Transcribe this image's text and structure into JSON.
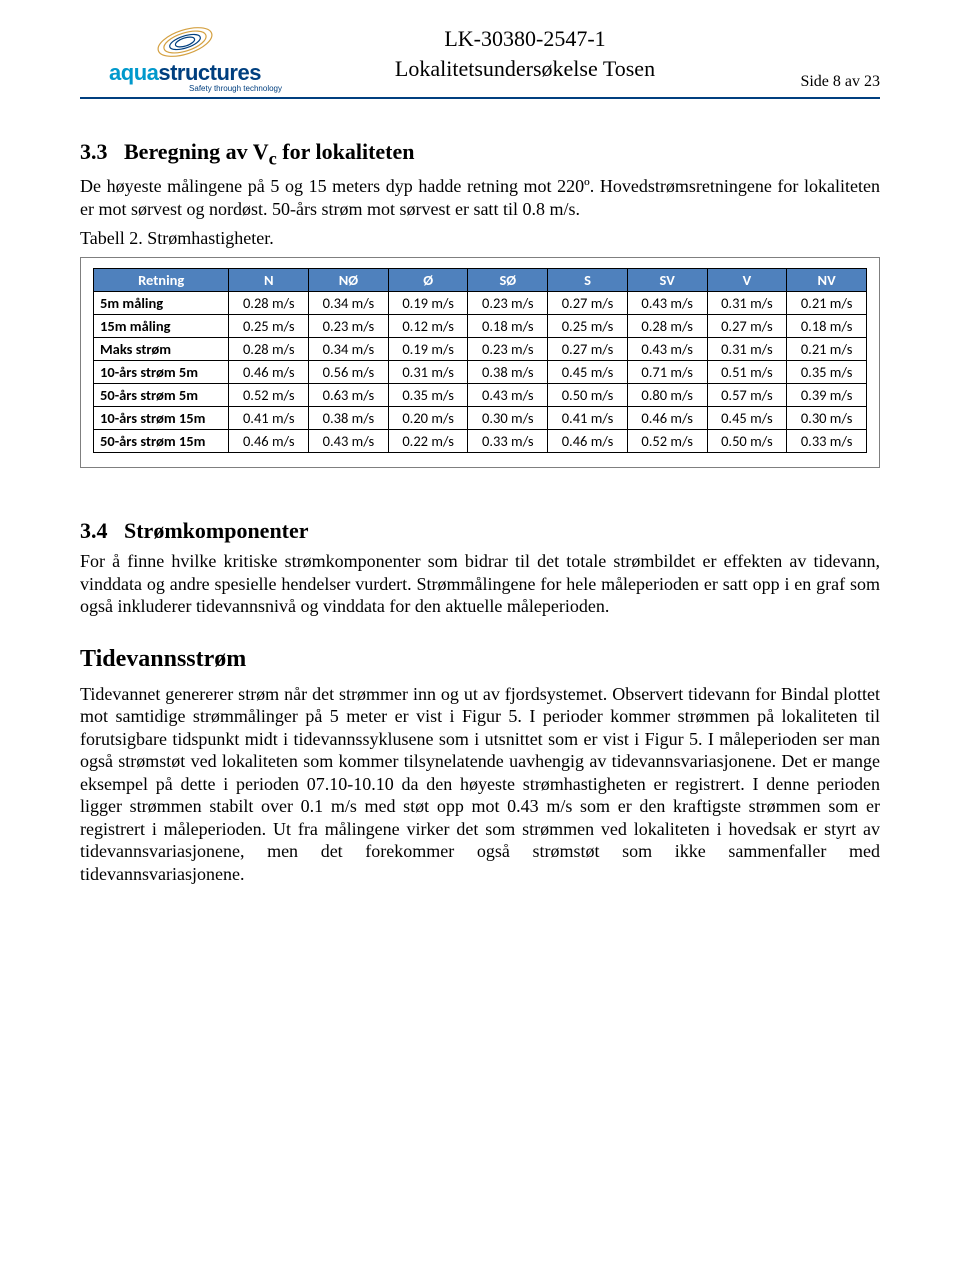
{
  "header": {
    "doc_id": "LK-30380-2547-1",
    "doc_title": "Lokalitetsundersøkelse Tosen",
    "page_info": "Side 8 av 23",
    "logo_word1": "aqua",
    "logo_word2": "structures",
    "logo_tagline": "Safety through technology",
    "logo_colors": {
      "aqua": "#0099cc",
      "structures": "#003f7f",
      "rule": "#003f7f"
    }
  },
  "section33": {
    "num": "3.3",
    "title_prefix": "Beregning av V",
    "title_sub": "c",
    "title_suffix": " for lokaliteten",
    "para": "De høyeste målingene på 5 og 15 meters dyp hadde retning mot 220º. Hovedstrømsretningene for lokaliteten er mot sørvest og nordøst. 50-års strøm mot sørvest er satt til 0.8 m/s.",
    "caption": "Tabell 2. Strømhastigheter."
  },
  "table": {
    "header_bg": "#4f81bd",
    "header_fg": "#ffffff",
    "border": "#000000",
    "font": "Calibri",
    "fontsize_pt": 11,
    "columns": [
      "Retning",
      "N",
      "NØ",
      "Ø",
      "SØ",
      "S",
      "SV",
      "V",
      "NV"
    ],
    "col_widths_pct": [
      17.5,
      10.3,
      10.3,
      10.3,
      10.3,
      10.3,
      10.3,
      10.3,
      10.3
    ],
    "rows": [
      {
        "label": "5m måling",
        "cells": [
          "0.28 m/s",
          "0.34 m/s",
          "0.19 m/s",
          "0.23 m/s",
          "0.27 m/s",
          "0.43 m/s",
          "0.31 m/s",
          "0.21 m/s"
        ]
      },
      {
        "label": "15m måling",
        "cells": [
          "0.25 m/s",
          "0.23 m/s",
          "0.12 m/s",
          "0.18 m/s",
          "0.25 m/s",
          "0.28 m/s",
          "0.27 m/s",
          "0.18 m/s"
        ]
      },
      {
        "label": "Maks strøm",
        "cells": [
          "0.28 m/s",
          "0.34 m/s",
          "0.19 m/s",
          "0.23 m/s",
          "0.27 m/s",
          "0.43 m/s",
          "0.31 m/s",
          "0.21 m/s"
        ]
      },
      {
        "label": "10-års strøm 5m",
        "cells": [
          "0.46 m/s",
          "0.56 m/s",
          "0.31 m/s",
          "0.38 m/s",
          "0.45 m/s",
          "0.71 m/s",
          "0.51 m/s",
          "0.35 m/s"
        ]
      },
      {
        "label": "50-års strøm 5m",
        "cells": [
          "0.52 m/s",
          "0.63 m/s",
          "0.35 m/s",
          "0.43 m/s",
          "0.50 m/s",
          "0.80 m/s",
          "0.57 m/s",
          "0.39 m/s"
        ]
      },
      {
        "label": "10-års strøm 15m",
        "cells": [
          "0.41 m/s",
          "0.38 m/s",
          "0.20 m/s",
          "0.30 m/s",
          "0.41 m/s",
          "0.46 m/s",
          "0.45 m/s",
          "0.30 m/s"
        ]
      },
      {
        "label": "50-års strøm 15m",
        "cells": [
          "0.46 m/s",
          "0.43 m/s",
          "0.22 m/s",
          "0.33 m/s",
          "0.46 m/s",
          "0.52 m/s",
          "0.50 m/s",
          "0.33 m/s"
        ]
      }
    ]
  },
  "section34": {
    "num": "3.4",
    "title": "Strømkomponenter",
    "para": "For å finne hvilke kritiske strømkomponenter som bidrar til det totale strømbildet er effekten av tidevann, vinddata og andre spesielle hendelser vurdert. Strømmålingene for hele måleperioden er satt opp i en graf som også inkluderer tidevannsnivå og vinddata for den aktuelle måleperioden."
  },
  "tide": {
    "heading": "Tidevannsstrøm",
    "para": "Tidevannet genererer strøm når det strømmer inn og ut av fjordsystemet. Observert tidevann for Bindal plottet mot samtidige strømmålinger på 5 meter er vist i Figur 5. I perioder kommer strømmen på lokaliteten til forutsigbare tidspunkt midt i tidevannssyklusene som i utsnittet som er vist i Figur 5. I måleperioden ser man også strømstøt ved lokaliteten som kommer tilsynelatende uavhengig av tidevannsvariasjonene. Det er mange eksempel på dette i perioden 07.10-10.10 da den høyeste strømhastigheten er registrert. I denne perioden ligger strømmen stabilt over 0.1 m/s med støt opp mot 0.43 m/s som er den kraftigste strømmen som er registrert i måleperioden. Ut fra målingene virker det som strømmen ved lokaliteten i hovedsak er styrt av tidevannsvariasjonene, men det forekommer også strømstøt som ikke sammenfaller med tidevannsvariasjonene."
  }
}
